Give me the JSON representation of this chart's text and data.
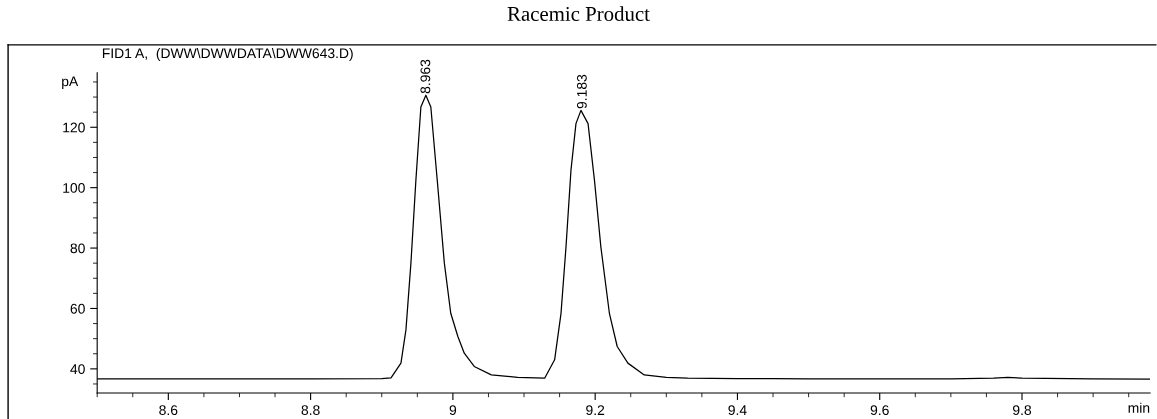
{
  "chart_data": {
    "type": "line",
    "title": "Racemic Product",
    "subtitle": "FID1 A,  (DWW\\DWWDATA\\DWW643.D)",
    "xlabel": "min",
    "ylabel": "pA",
    "xlim": [
      8.5,
      9.98
    ],
    "ylim": [
      32,
      138
    ],
    "xticks": [
      8.6,
      8.8,
      9,
      9.2,
      9.4,
      9.6,
      9.8
    ],
    "yticks": [
      40,
      60,
      80,
      100,
      120
    ],
    "grid": false,
    "legend": false,
    "marker": "none",
    "line_style": "solid",
    "annotations": [
      {
        "text": "8.963",
        "x": 8.963,
        "y": 130.6
      },
      {
        "text": "9.183",
        "x": 9.183,
        "y": 125.6
      }
    ],
    "series": [
      {
        "color": "#000000",
        "x": [
          8.5,
          8.6,
          8.7,
          8.8,
          8.9,
          8.913,
          8.927,
          8.934,
          8.941,
          8.948,
          8.955,
          8.962,
          8.969,
          8.978,
          8.988,
          8.997,
          9.007,
          9.016,
          9.03,
          9.054,
          9.091,
          9.129,
          9.143,
          9.152,
          9.159,
          9.166,
          9.173,
          9.18,
          9.19,
          9.199,
          9.208,
          9.22,
          9.231,
          9.246,
          9.269,
          9.3,
          9.33,
          9.4,
          9.45,
          9.5,
          9.6,
          9.7,
          9.76,
          9.78,
          9.8,
          9.9,
          9.98
        ],
        "values": [
          36.7,
          36.7,
          36.7,
          36.7,
          36.8,
          37,
          41.9,
          52.9,
          75,
          102.5,
          126.7,
          130.6,
          126.7,
          102.5,
          75,
          58.4,
          50.7,
          45.2,
          40.8,
          38,
          37.2,
          36.9,
          43,
          58.4,
          80.4,
          105.8,
          121.2,
          125.6,
          121.2,
          102.5,
          80.4,
          58.4,
          47.4,
          41.9,
          38,
          37.2,
          36.9,
          36.8,
          36.8,
          36.7,
          36.7,
          36.7,
          36.9,
          37.2,
          36.9,
          36.7,
          36.6
        ]
      }
    ]
  }
}
